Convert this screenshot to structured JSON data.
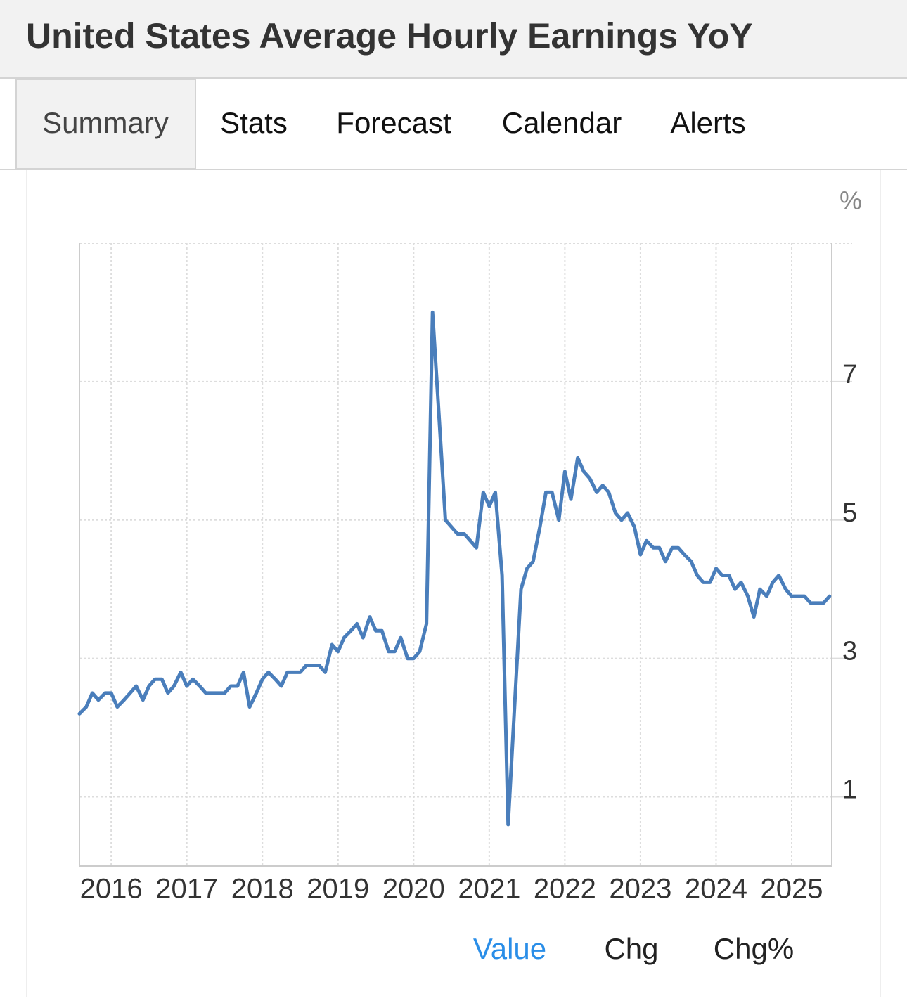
{
  "header": {
    "title": "United States Average Hourly Earnings YoY"
  },
  "tabs": [
    "Summary",
    "Stats",
    "Forecast",
    "Calendar",
    "Alerts"
  ],
  "chart_data": {
    "type": "line",
    "unit_label": "%",
    "x": [
      2015.58,
      2015.67,
      2015.75,
      2015.83,
      2015.92,
      2016,
      2016.08,
      2016.17,
      2016.25,
      2016.33,
      2016.42,
      2016.5,
      2016.58,
      2016.67,
      2016.75,
      2016.83,
      2016.92,
      2017,
      2017.08,
      2017.17,
      2017.25,
      2017.33,
      2017.42,
      2017.5,
      2017.58,
      2017.67,
      2017.75,
      2017.83,
      2017.92,
      2018,
      2018.08,
      2018.17,
      2018.25,
      2018.33,
      2018.42,
      2018.5,
      2018.58,
      2018.67,
      2018.75,
      2018.83,
      2018.92,
      2019,
      2019.08,
      2019.17,
      2019.25,
      2019.33,
      2019.42,
      2019.5,
      2019.58,
      2019.67,
      2019.75,
      2019.83,
      2019.92,
      2020,
      2020.08,
      2020.17,
      2020.25,
      2020.33,
      2020.42,
      2020.5,
      2020.58,
      2020.67,
      2020.75,
      2020.83,
      2020.92,
      2021,
      2021.08,
      2021.17,
      2021.25,
      2021.33,
      2021.42,
      2021.5,
      2021.58,
      2021.67,
      2021.75,
      2021.83,
      2021.92,
      2022,
      2022.08,
      2022.17,
      2022.25,
      2022.33,
      2022.42,
      2022.5,
      2022.58,
      2022.67,
      2022.75,
      2022.83,
      2022.92,
      2023,
      2023.08,
      2023.17,
      2023.25,
      2023.33,
      2023.42,
      2023.5,
      2023.58,
      2023.67,
      2023.75,
      2023.83,
      2023.92,
      2024,
      2024.08,
      2024.17,
      2024.25,
      2024.33,
      2024.42,
      2024.5,
      2024.58,
      2024.67,
      2024.75,
      2024.83,
      2024.92,
      2025,
      2025.08,
      2025.17,
      2025.25,
      2025.33,
      2025.42,
      2025.5
    ],
    "series": [
      {
        "color": "#4a7ebb",
        "values": [
          2.2,
          2.3,
          2.5,
          2.4,
          2.5,
          2.5,
          2.3,
          2.4,
          2.5,
          2.6,
          2.4,
          2.6,
          2.7,
          2.7,
          2.5,
          2.6,
          2.8,
          2.6,
          2.7,
          2.6,
          2.5,
          2.5,
          2.5,
          2.5,
          2.6,
          2.6,
          2.8,
          2.3,
          2.5,
          2.7,
          2.8,
          2.7,
          2.6,
          2.8,
          2.8,
          2.8,
          2.9,
          2.9,
          2.9,
          2.8,
          3.2,
          3.1,
          3.3,
          3.4,
          3.5,
          3.3,
          3.6,
          3.4,
          3.4,
          3.1,
          3.1,
          3.3,
          3.0,
          3.0,
          3.1,
          3.5,
          8.0,
          6.6,
          5.0,
          4.9,
          4.8,
          4.8,
          4.7,
          4.6,
          5.4,
          5.2,
          5.4,
          4.2,
          0.6,
          2.2,
          4.0,
          4.3,
          4.4,
          4.9,
          5.4,
          5.4,
          5.0,
          5.7,
          5.3,
          5.9,
          5.7,
          5.6,
          5.4,
          5.5,
          5.4,
          5.1,
          5.0,
          5.1,
          4.9,
          4.5,
          4.7,
          4.6,
          4.6,
          4.4,
          4.6,
          4.6,
          4.5,
          4.4,
          4.2,
          4.1,
          4.1,
          4.3,
          4.2,
          4.2,
          4.0,
          4.1,
          3.9,
          3.6,
          4.0,
          3.9,
          4.1,
          4.2,
          4.0,
          3.9,
          3.9,
          3.9,
          3.8,
          3.8,
          3.8,
          3.9
        ]
      }
    ],
    "xlim": [
      2015.58,
      2025.53
    ],
    "xticks": [
      2016,
      2017,
      2018,
      2019,
      2020,
      2021,
      2022,
      2023,
      2024,
      2025
    ],
    "ylim": [
      0,
      9
    ],
    "yticks": [
      1,
      3,
      5,
      7
    ],
    "grid": true
  },
  "buttons": [
    "Value",
    "Chg",
    "Chg%"
  ]
}
